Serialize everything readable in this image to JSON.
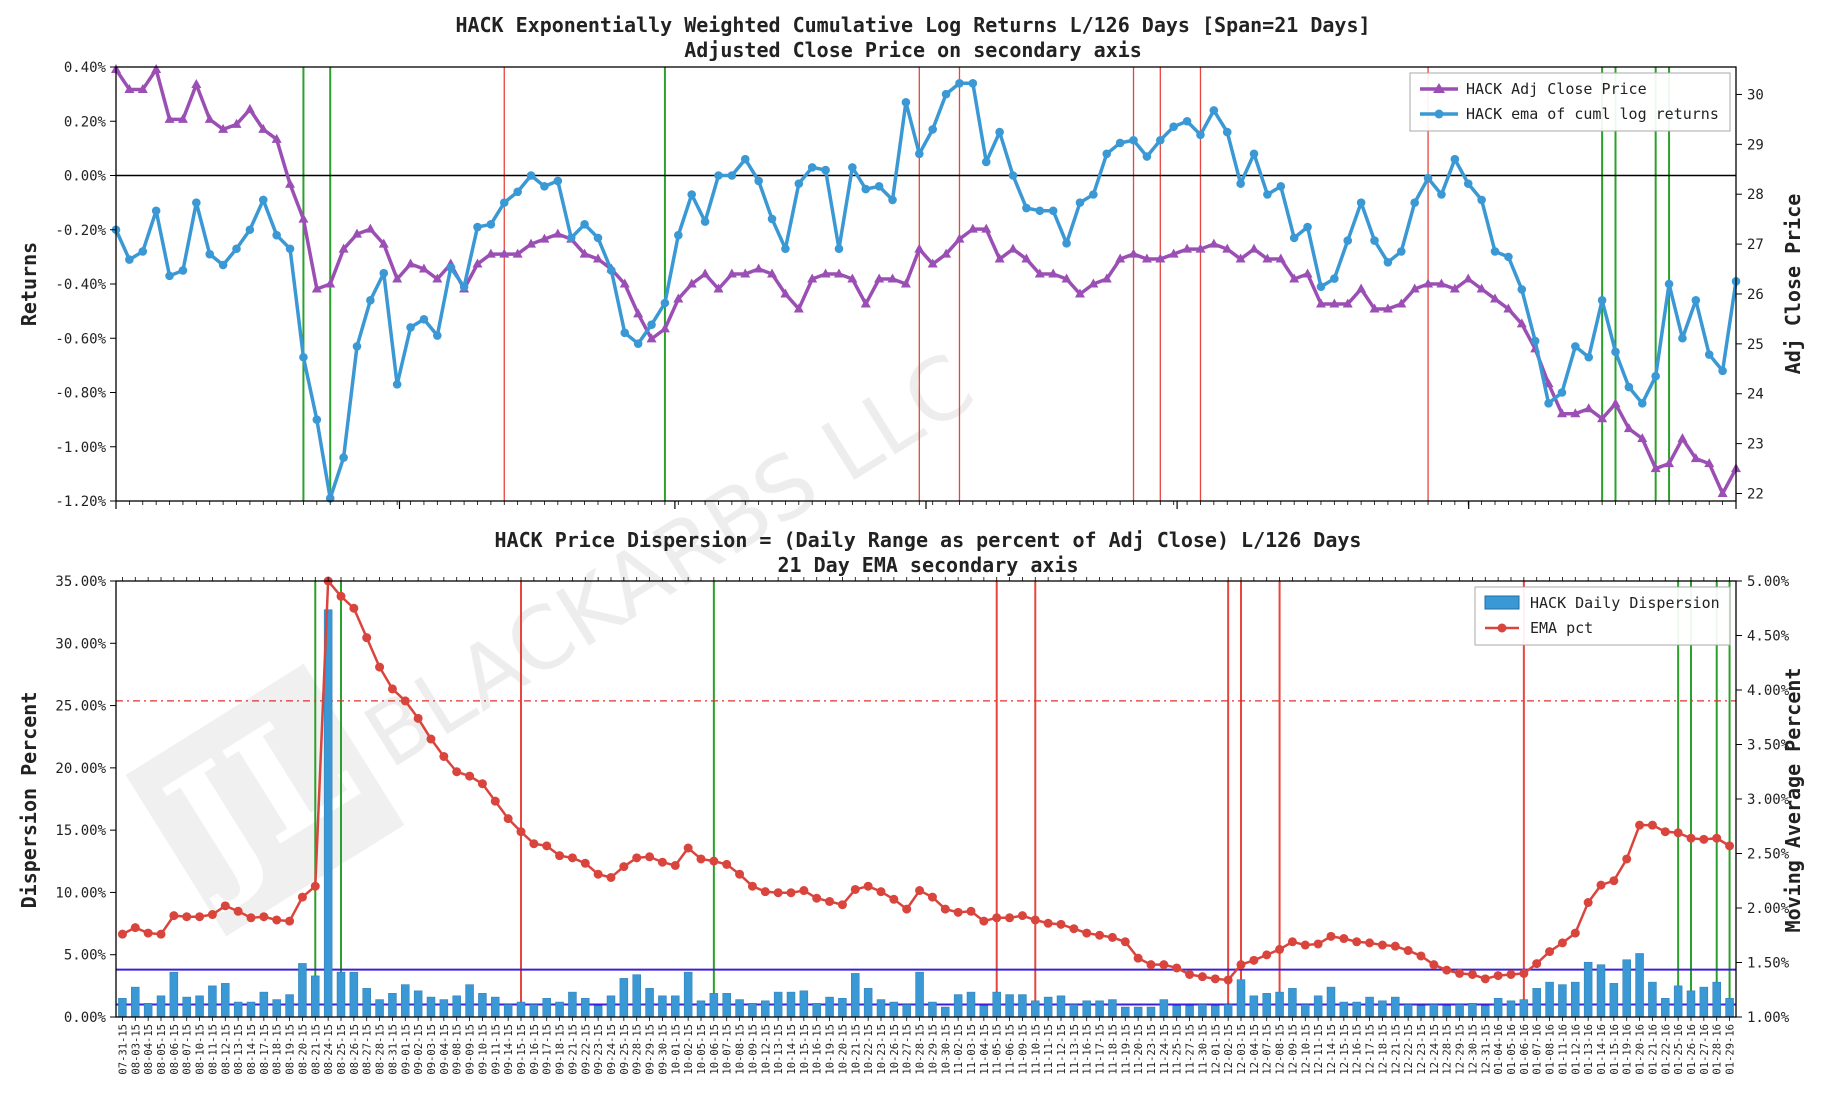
{
  "chart_data": [
    {
      "type": "line",
      "title": "HACK Exponentially Weighted Cumulative Log Returns L/126 Days [Span=21 Days]",
      "subtitle": "Adjusted Close Price on secondary axis",
      "ylabel": "Returns",
      "y2label": "Adj Close Price",
      "ylim": [
        -1.2,
        0.4
      ],
      "y2lim": [
        21.85,
        30.55
      ],
      "yticks": [
        "0.40%",
        "0.20%",
        "0.00%",
        "-0.20%",
        "-0.40%",
        "-0.60%",
        "-0.80%",
        "-1.00%",
        "-1.20%"
      ],
      "ytick_values": [
        0.4,
        0.2,
        0.0,
        -0.2,
        -0.4,
        -0.6,
        -0.8,
        -1.0,
        -1.2
      ],
      "y2ticks": [
        "30",
        "29",
        "28",
        "27",
        "26",
        "25",
        "24",
        "23",
        "22"
      ],
      "y2tick_values": [
        30,
        29,
        28,
        27,
        26,
        25,
        24,
        23,
        22
      ],
      "legend": [
        "HACK Adj Close Price",
        "HACK ema of cuml log returns"
      ],
      "legend_position": "top-right",
      "series": [
        {
          "name": "HACK ema of cuml log returns",
          "axis": "left",
          "color": "#3a98d4",
          "marker": "circle",
          "values": [
            -0.2,
            -0.31,
            -0.28,
            -0.13,
            -0.37,
            -0.35,
            -0.1,
            -0.29,
            -0.33,
            -0.27,
            -0.2,
            -0.09,
            -0.22,
            -0.27,
            -0.67,
            -0.9,
            -1.19,
            -1.04,
            -0.63,
            -0.46,
            -0.36,
            -0.77,
            -0.56,
            -0.53,
            -0.59,
            -0.34,
            -0.41,
            -0.19,
            -0.18,
            -0.1,
            -0.06,
            0.0,
            -0.04,
            -0.02,
            -0.23,
            -0.18,
            -0.23,
            -0.35,
            -0.58,
            -0.62,
            -0.55,
            -0.47,
            -0.22,
            -0.07,
            -0.17,
            0.0,
            0.0,
            0.06,
            -0.02,
            -0.16,
            -0.27,
            -0.03,
            0.03,
            0.02,
            -0.27,
            0.03,
            -0.05,
            -0.04,
            -0.09,
            0.27,
            0.08,
            0.17,
            0.3,
            0.34,
            0.34,
            0.05,
            0.16,
            0.0,
            -0.12,
            -0.13,
            -0.13,
            -0.25,
            -0.1,
            -0.07,
            0.08,
            0.12,
            0.13,
            0.07,
            0.13,
            0.18,
            0.2,
            0.15,
            0.24,
            0.16,
            -0.03,
            0.08,
            -0.07,
            -0.04,
            -0.23,
            -0.19,
            -0.41,
            -0.38,
            -0.24,
            -0.1,
            -0.24,
            -0.32,
            -0.28,
            -0.1,
            -0.01,
            -0.07,
            0.06,
            -0.03,
            -0.09,
            -0.28,
            -0.3,
            -0.42,
            -0.61,
            -0.84,
            -0.8,
            -0.63,
            -0.67,
            -0.46,
            -0.65,
            -0.78,
            -0.84,
            -0.74,
            -0.4,
            -0.6,
            -0.46,
            -0.66,
            -0.72,
            -0.39
          ]
        },
        {
          "name": "HACK Adj Close Price",
          "axis": "right",
          "color": "#9b4fb4",
          "marker": "triangle",
          "values": [
            30.5,
            30.1,
            30.1,
            30.5,
            29.5,
            29.5,
            30.2,
            29.5,
            29.3,
            29.4,
            29.7,
            29.3,
            29.1,
            28.2,
            27.5,
            26.1,
            26.2,
            26.9,
            27.2,
            27.3,
            27.0,
            26.3,
            26.6,
            26.5,
            26.3,
            26.6,
            26.1,
            26.6,
            26.8,
            26.8,
            26.8,
            27.0,
            27.1,
            27.2,
            27.1,
            26.8,
            26.7,
            26.5,
            26.2,
            25.6,
            25.1,
            25.3,
            25.9,
            26.2,
            26.4,
            26.1,
            26.4,
            26.4,
            26.5,
            26.4,
            26.0,
            25.7,
            26.3,
            26.4,
            26.4,
            26.3,
            25.8,
            26.3,
            26.3,
            26.2,
            26.9,
            26.6,
            26.8,
            27.1,
            27.3,
            27.3,
            26.7,
            26.9,
            26.7,
            26.4,
            26.4,
            26.3,
            26.0,
            26.2,
            26.3,
            26.7,
            26.8,
            26.7,
            26.7,
            26.8,
            26.9,
            26.9,
            27.0,
            26.9,
            26.7,
            26.9,
            26.7,
            26.7,
            26.3,
            26.4,
            25.8,
            25.8,
            25.8,
            26.1,
            25.7,
            25.7,
            25.8,
            26.1,
            26.2,
            26.2,
            26.1,
            26.3,
            26.1,
            25.9,
            25.7,
            25.4,
            24.9,
            24.2,
            23.6,
            23.6,
            23.7,
            23.5,
            23.8,
            23.3,
            23.1,
            22.5,
            22.6,
            23.1,
            22.7,
            22.6,
            22.0,
            22.5
          ]
        }
      ],
      "marker_lines": [
        {
          "index": 14,
          "color": "green"
        },
        {
          "index": 16,
          "color": "green"
        },
        {
          "index": 29,
          "color": "red"
        },
        {
          "index": 41,
          "color": "green"
        },
        {
          "index": 60,
          "color": "red"
        },
        {
          "index": 63,
          "color": "red"
        },
        {
          "index": 76,
          "color": "red"
        },
        {
          "index": 78,
          "color": "red"
        },
        {
          "index": 81,
          "color": "red"
        },
        {
          "index": 98,
          "color": "red"
        },
        {
          "index": 111,
          "color": "green"
        },
        {
          "index": 112,
          "color": "green"
        },
        {
          "index": 115,
          "color": "green"
        },
        {
          "index": 116,
          "color": "green"
        }
      ]
    },
    {
      "type": "bar",
      "title": "HACK Price Dispersion = (Daily Range as percent of Adj Close) L/126 Days",
      "subtitle": "21 Day EMA secondary axis",
      "ylabel": "Dispersion Percent",
      "y2label": "Moving Average Percent",
      "ylim": [
        0,
        35
      ],
      "y2lim": [
        1.0,
        5.0
      ],
      "yticks": [
        "35.00%",
        "30.00%",
        "25.00%",
        "20.00%",
        "15.00%",
        "10.00%",
        "5.00%",
        "0.00%"
      ],
      "ytick_values": [
        35,
        30,
        25,
        20,
        15,
        10,
        5,
        0
      ],
      "y2ticks": [
        "5.00%",
        "4.50%",
        "4.00%",
        "3.50%",
        "3.00%",
        "2.50%",
        "2.00%",
        "1.50%",
        "1.00%"
      ],
      "y2tick_values": [
        5.0,
        4.5,
        4.0,
        3.5,
        3.0,
        2.5,
        2.0,
        1.5,
        1.0
      ],
      "legend": [
        "HACK Daily Dispersion",
        "EMA pct"
      ],
      "legend_position": "top-right",
      "hlines": [
        {
          "axis": "left",
          "value": 3.8,
          "color": "#3f1fd6",
          "style": "solid"
        },
        {
          "axis": "left",
          "value": 1.0,
          "color": "#3f1fd6",
          "style": "solid"
        },
        {
          "axis": "right",
          "value": 3.9,
          "color": "#e0302a",
          "style": "dashdot"
        }
      ],
      "categories": [
        "07-31-15",
        "08-03-15",
        "08-04-15",
        "08-05-15",
        "08-06-15",
        "08-07-15",
        "08-10-15",
        "08-11-15",
        "08-12-15",
        "08-13-15",
        "08-14-15",
        "08-17-15",
        "08-18-15",
        "08-19-15",
        "08-20-15",
        "08-21-15",
        "08-24-15",
        "08-25-15",
        "08-26-15",
        "08-27-15",
        "08-28-15",
        "08-31-15",
        "09-01-15",
        "09-02-15",
        "09-03-15",
        "09-04-15",
        "09-08-15",
        "09-09-15",
        "09-10-15",
        "09-11-15",
        "09-14-15",
        "09-15-15",
        "09-16-15",
        "09-17-15",
        "09-18-15",
        "09-21-15",
        "09-22-15",
        "09-23-15",
        "09-24-15",
        "09-25-15",
        "09-28-15",
        "09-29-15",
        "09-30-15",
        "10-01-15",
        "10-02-15",
        "10-05-15",
        "10-06-15",
        "10-07-15",
        "10-08-15",
        "10-09-15",
        "10-12-15",
        "10-13-15",
        "10-14-15",
        "10-15-15",
        "10-16-15",
        "10-19-15",
        "10-20-15",
        "10-21-15",
        "10-22-15",
        "10-23-15",
        "10-26-15",
        "10-27-15",
        "10-28-15",
        "10-29-15",
        "10-30-15",
        "11-02-15",
        "11-03-15",
        "11-04-15",
        "11-05-15",
        "11-06-15",
        "11-09-15",
        "11-10-15",
        "11-11-15",
        "11-12-15",
        "11-13-15",
        "11-16-15",
        "11-17-15",
        "11-18-15",
        "11-19-15",
        "11-20-15",
        "11-23-15",
        "11-24-15",
        "11-25-15",
        "11-27-15",
        "11-30-15",
        "12-01-15",
        "12-02-15",
        "12-03-15",
        "12-04-15",
        "12-07-15",
        "12-08-15",
        "12-09-15",
        "12-10-15",
        "12-11-15",
        "12-14-15",
        "12-15-15",
        "12-16-15",
        "12-17-15",
        "12-18-15",
        "12-21-15",
        "12-22-15",
        "12-23-15",
        "12-24-15",
        "12-28-15",
        "12-29-15",
        "12-30-15",
        "12-31-15",
        "01-04-16",
        "01-05-16",
        "01-06-16",
        "01-07-16",
        "01-08-16",
        "01-11-16",
        "01-12-16",
        "01-13-16",
        "01-14-16",
        "01-15-16",
        "01-19-16",
        "01-20-16",
        "01-21-16",
        "01-22-16",
        "01-25-16",
        "01-26-16",
        "01-27-16",
        "01-28-16",
        "01-29-16"
      ],
      "series": [
        {
          "name": "HACK Daily Dispersion",
          "axis": "left",
          "color": "#3a98d4",
          "values": [
            1.5,
            2.4,
            1.1,
            1.7,
            3.6,
            1.6,
            1.7,
            2.5,
            2.7,
            1.2,
            1.2,
            2.0,
            1.4,
            1.8,
            4.3,
            3.3,
            32.7,
            3.6,
            3.6,
            2.3,
            1.4,
            1.9,
            2.6,
            2.1,
            1.6,
            1.4,
            1.7,
            2.6,
            1.9,
            1.6,
            1.0,
            1.2,
            1.0,
            1.5,
            1.2,
            2.0,
            1.5,
            0.9,
            1.7,
            3.1,
            3.4,
            2.3,
            1.7,
            1.7,
            3.6,
            1.3,
            1.9,
            1.9,
            1.4,
            1.1,
            1.3,
            2.0,
            2.0,
            2.1,
            1.1,
            1.6,
            1.5,
            3.5,
            2.3,
            1.4,
            1.2,
            1.0,
            3.6,
            1.2,
            0.8,
            1.8,
            2.0,
            0.9,
            2.0,
            1.8,
            1.8,
            1.3,
            1.6,
            1.7,
            1.0,
            1.3,
            1.3,
            1.4,
            0.8,
            0.8,
            0.8,
            1.4,
            0.9,
            0.9,
            1.0,
            0.9,
            1.0,
            3.0,
            1.7,
            1.9,
            2.0,
            2.3,
            1.0,
            1.7,
            2.4,
            1.2,
            1.2,
            1.6,
            1.3,
            1.6,
            1.0,
            0.9,
            1.0,
            0.9,
            1.0,
            1.1,
            0.9,
            1.5,
            1.3,
            1.4,
            2.3,
            2.8,
            2.6,
            2.8,
            4.4,
            4.2,
            2.7,
            4.6,
            5.1,
            2.8,
            1.5,
            2.5,
            2.1,
            2.4,
            2.8,
            1.5
          ]
        },
        {
          "name": "EMA pct",
          "axis": "right",
          "color": "#d9453c",
          "values": [
            1.76,
            1.82,
            1.77,
            1.76,
            1.93,
            1.92,
            1.92,
            1.94,
            2.02,
            1.97,
            1.91,
            1.92,
            1.89,
            1.88,
            2.1,
            2.2,
            5.0,
            4.86,
            4.75,
            4.48,
            4.21,
            4.01,
            3.9,
            3.74,
            3.55,
            3.39,
            3.25,
            3.21,
            3.14,
            2.98,
            2.82,
            2.7,
            2.59,
            2.57,
            2.48,
            2.46,
            2.41,
            2.31,
            2.28,
            2.38,
            2.46,
            2.47,
            2.42,
            2.39,
            2.55,
            2.45,
            2.43,
            2.4,
            2.31,
            2.2,
            2.15,
            2.14,
            2.14,
            2.16,
            2.09,
            2.06,
            2.03,
            2.17,
            2.2,
            2.15,
            2.08,
            1.99,
            2.16,
            2.1,
            1.99,
            1.96,
            1.97,
            1.88,
            1.91,
            1.91,
            1.93,
            1.89,
            1.86,
            1.85,
            1.81,
            1.77,
            1.75,
            1.73,
            1.69,
            1.54,
            1.48,
            1.48,
            1.45,
            1.39,
            1.37,
            1.35,
            1.34,
            1.48,
            1.52,
            1.57,
            1.62,
            1.69,
            1.66,
            1.67,
            1.74,
            1.72,
            1.69,
            1.68,
            1.66,
            1.65,
            1.61,
            1.56,
            1.48,
            1.43,
            1.4,
            1.39,
            1.35,
            1.38,
            1.39,
            1.4,
            1.49,
            1.6,
            1.68,
            1.77,
            2.05,
            2.21,
            2.25,
            2.45,
            2.76,
            2.76,
            2.7,
            2.69,
            2.64,
            2.63,
            2.64,
            2.57
          ]
        }
      ],
      "marker_lines": [
        {
          "index": 15,
          "color": "green"
        },
        {
          "index": 17,
          "color": "green"
        },
        {
          "index": 31,
          "color": "red"
        },
        {
          "index": 46,
          "color": "green"
        },
        {
          "index": 68,
          "color": "red"
        },
        {
          "index": 71,
          "color": "red"
        },
        {
          "index": 86,
          "color": "red"
        },
        {
          "index": 87,
          "color": "red"
        },
        {
          "index": 90,
          "color": "red"
        },
        {
          "index": 109,
          "color": "red"
        },
        {
          "index": 121,
          "color": "green"
        },
        {
          "index": 122,
          "color": "green"
        },
        {
          "index": 124,
          "color": "green"
        },
        {
          "index": 125,
          "color": "green"
        }
      ]
    }
  ],
  "watermark": {
    "text": "BLACKARBS LLC",
    "logo_text": "JL"
  }
}
